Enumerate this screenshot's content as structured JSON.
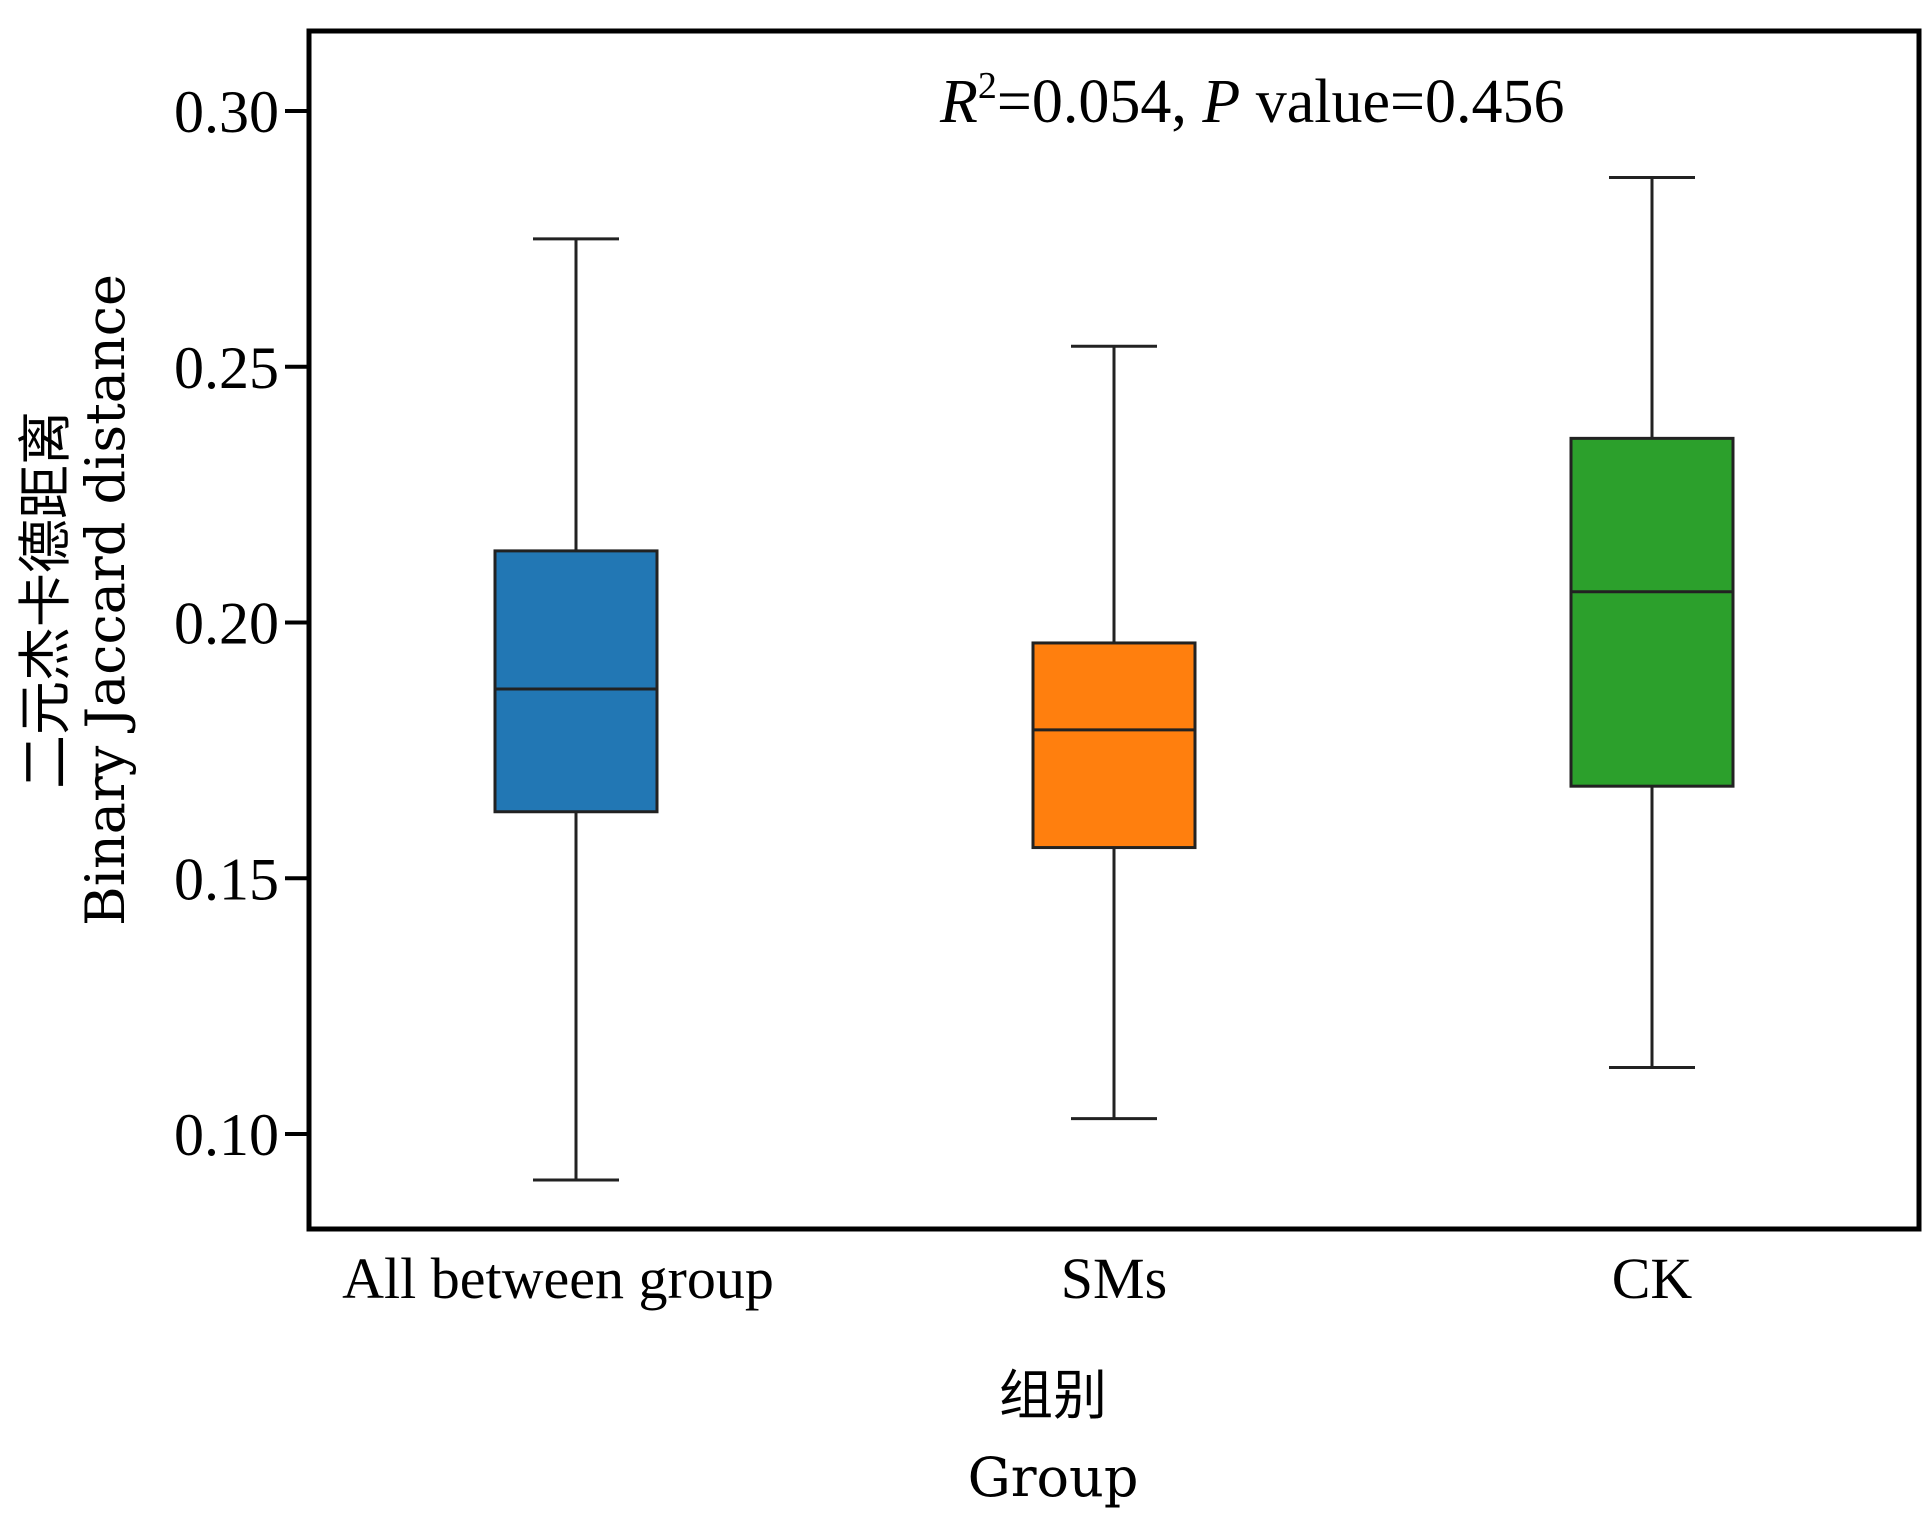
{
  "chart_data": {
    "type": "box",
    "title": "",
    "annotation": {
      "r2_symbol": "R",
      "r2_superscript": "2",
      "r2_text": "=0.054, ",
      "p_symbol": "P",
      "p_text": " value=0.456"
    },
    "xlabel_cn": "组别",
    "xlabel_en": "Group",
    "ylabel_cn": "二元杰卡德距离",
    "ylabel_en": "Binary Jaccard distance",
    "ylim": [
      0.081,
      0.316
    ],
    "yticks": [
      0.1,
      0.15,
      0.2,
      0.25,
      0.3
    ],
    "ytick_labels": [
      "0.10",
      "0.15",
      "0.20",
      "0.25",
      "0.30"
    ],
    "grid": false,
    "categories": [
      "All between group",
      "SMs",
      "CK"
    ],
    "series": [
      {
        "category": "All between group",
        "color": "#2277b4",
        "min": 0.091,
        "q1": 0.163,
        "median": 0.187,
        "q3": 0.214,
        "max": 0.275
      },
      {
        "category": "SMs",
        "color": "#ff7f0e",
        "min": 0.103,
        "q1": 0.156,
        "median": 0.179,
        "q3": 0.196,
        "max": 0.254
      },
      {
        "category": "CK",
        "color": "#2ca02c",
        "min": 0.113,
        "q1": 0.168,
        "median": 0.206,
        "q3": 0.236,
        "max": 0.287
      }
    ]
  }
}
